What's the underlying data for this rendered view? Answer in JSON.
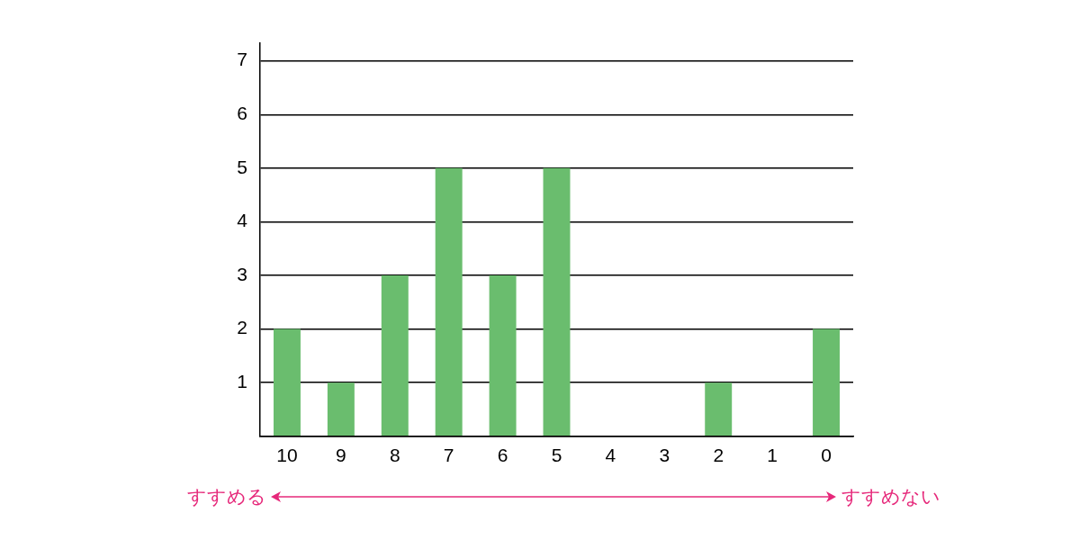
{
  "chart_data": {
    "type": "bar",
    "categories": [
      "10",
      "9",
      "8",
      "7",
      "6",
      "5",
      "4",
      "3",
      "2",
      "1",
      "0"
    ],
    "values": [
      2,
      1,
      3,
      5,
      3,
      5,
      0,
      0,
      1,
      0,
      2
    ],
    "color": "#6abd6e",
    "ylim": [
      0,
      7.33
    ],
    "yticks": [
      {
        "value": 0,
        "label": null
      },
      1,
      2,
      3,
      4,
      5,
      6,
      7
    ],
    "grid": "y",
    "annotations": [
      "すすめる",
      "すすめない"
    ]
  }
}
